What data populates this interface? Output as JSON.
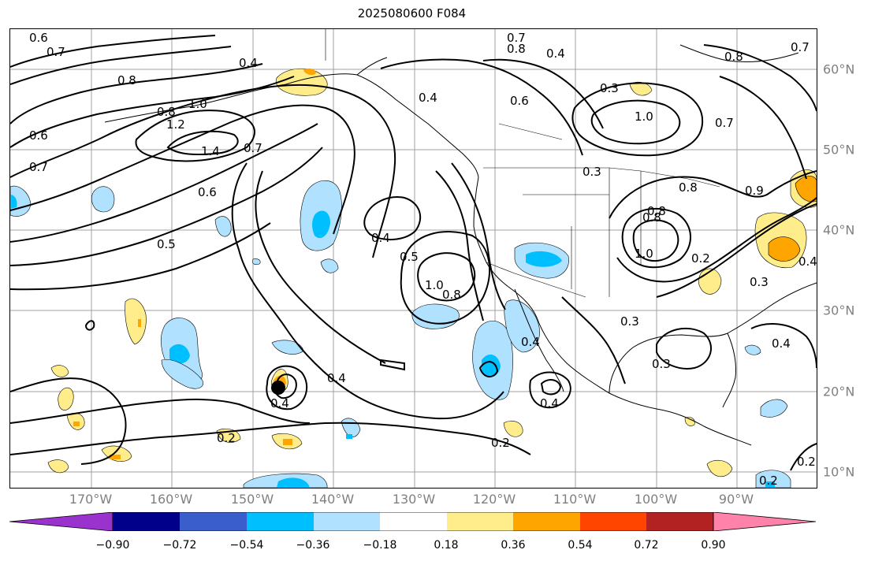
{
  "title": "2025080600 F084",
  "lon_labels": [
    "170°W",
    "160°W",
    "150°W",
    "140°W",
    "130°W",
    "120°W",
    "110°W",
    "100°W",
    "90°W"
  ],
  "lat_labels": [
    "60°N",
    "50°N",
    "40°N",
    "30°N",
    "20°N",
    "10°N"
  ],
  "colorbar": {
    "labels": [
      "−0.90",
      "−0.72",
      "−0.54",
      "−0.36",
      "−0.18",
      "0.18",
      "0.36",
      "0.54",
      "0.72",
      "0.90"
    ],
    "colors": [
      "#9a32cd",
      "#00008b",
      "#3a5fcd",
      "#00bfff",
      "#b0e2ff",
      "#ffffff",
      "#ffec8b",
      "#ffa500",
      "#ff4500",
      "#b22222",
      "#ff82ab"
    ]
  },
  "contour_labels": [
    "0.6",
    "0.7",
    "0.8",
    "1.0",
    "1.2",
    "1.4",
    "0.6",
    "0.7",
    "0.5",
    "0.4",
    "0.5",
    "0.4",
    "0.4",
    "0.4",
    "1.0",
    "0.8",
    "0.4",
    "0.4",
    "0.2",
    "0.2",
    "0.4",
    "0.7",
    "0.8",
    "0.4",
    "0.6",
    "0.3",
    "1.0",
    "0.7",
    "0.8",
    "0.3",
    "0.8",
    "0.8",
    "1.0",
    "0.2",
    "0.3",
    "0.3",
    "0.3",
    "0.4",
    "0.4",
    "0.2",
    "0.2",
    "0.7",
    "0.9",
    "0.6",
    "0.8",
    "0.8",
    "0.7"
  ]
}
